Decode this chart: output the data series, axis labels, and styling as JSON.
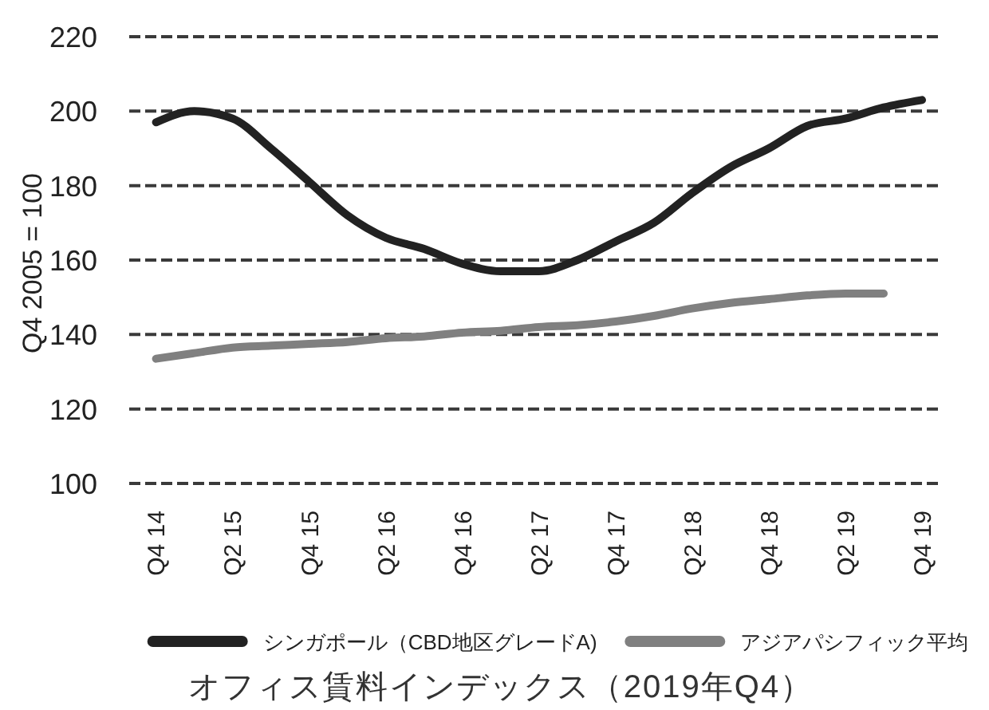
{
  "chart_data": {
    "type": "line",
    "title": "オフィス賃料インデックス（2019年Q4）",
    "ylabel": "Q4 2005 = 100",
    "categories": [
      "Q4 14",
      null,
      "Q2 15",
      null,
      "Q4 15",
      null,
      "Q2 16",
      null,
      "Q4 16",
      null,
      "Q2 17",
      null,
      "Q4 17",
      null,
      "Q2 18",
      null,
      "Q4 18",
      null,
      "Q2 19",
      null,
      "Q4 19"
    ],
    "series": [
      {
        "name": "シンガポール（CBD地区グレードA)",
        "color": "#222222",
        "values": [
          197,
          200,
          198,
          190,
          181,
          172,
          166,
          163,
          159,
          157,
          157,
          160,
          165,
          170,
          178,
          185,
          190,
          196,
          198,
          201,
          203
        ]
      },
      {
        "name": "アジアパシフィック平均",
        "color": "#808080",
        "values": [
          133.5,
          135,
          136.5,
          137,
          137.5,
          138,
          139,
          139.5,
          140.5,
          141,
          142,
          142.5,
          143.5,
          145,
          147,
          148.5,
          149.5,
          150.5,
          151,
          151,
          null
        ]
      }
    ],
    "ylim": [
      100,
      220
    ],
    "yticks": [
      100,
      120,
      140,
      160,
      180,
      200,
      220
    ],
    "grid": "y",
    "legend": "bottom"
  }
}
